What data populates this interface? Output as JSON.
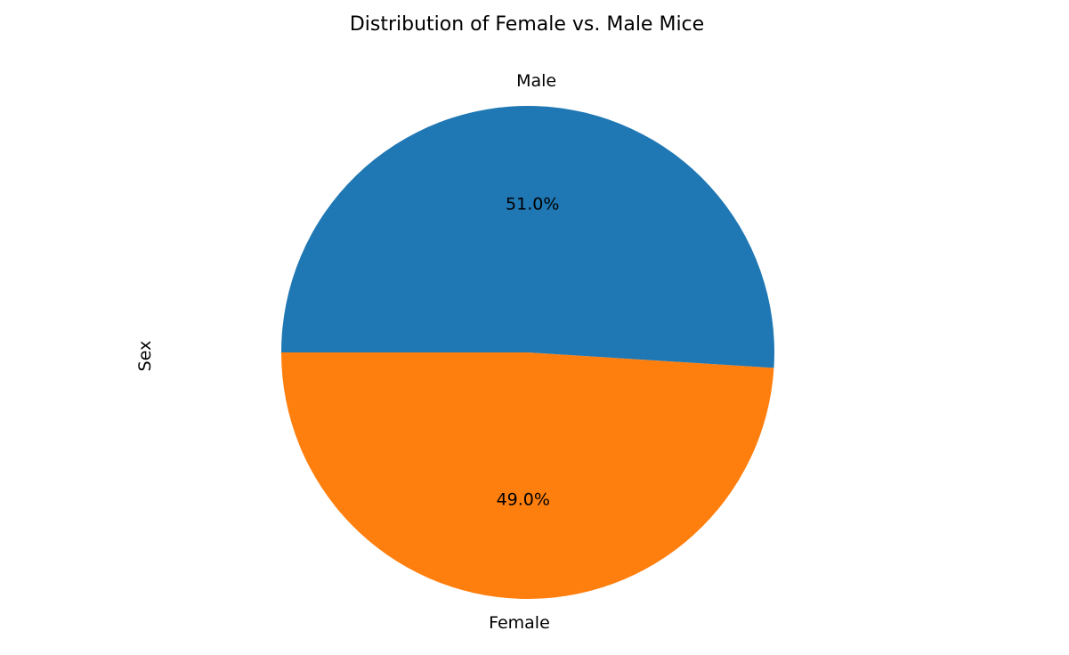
{
  "chart_data": {
    "type": "pie",
    "title": "Distribution of Female vs. Male Mice",
    "ylabel": "Sex",
    "start_angle_deg": 180,
    "direction": "counterclockwise",
    "slices": [
      {
        "label": "Female",
        "value": 49.0,
        "pct_label": "49.0%",
        "color": "#ff7f0e"
      },
      {
        "label": "Male",
        "value": 51.0,
        "pct_label": "51.0%",
        "color": "#1f77b4"
      }
    ]
  }
}
